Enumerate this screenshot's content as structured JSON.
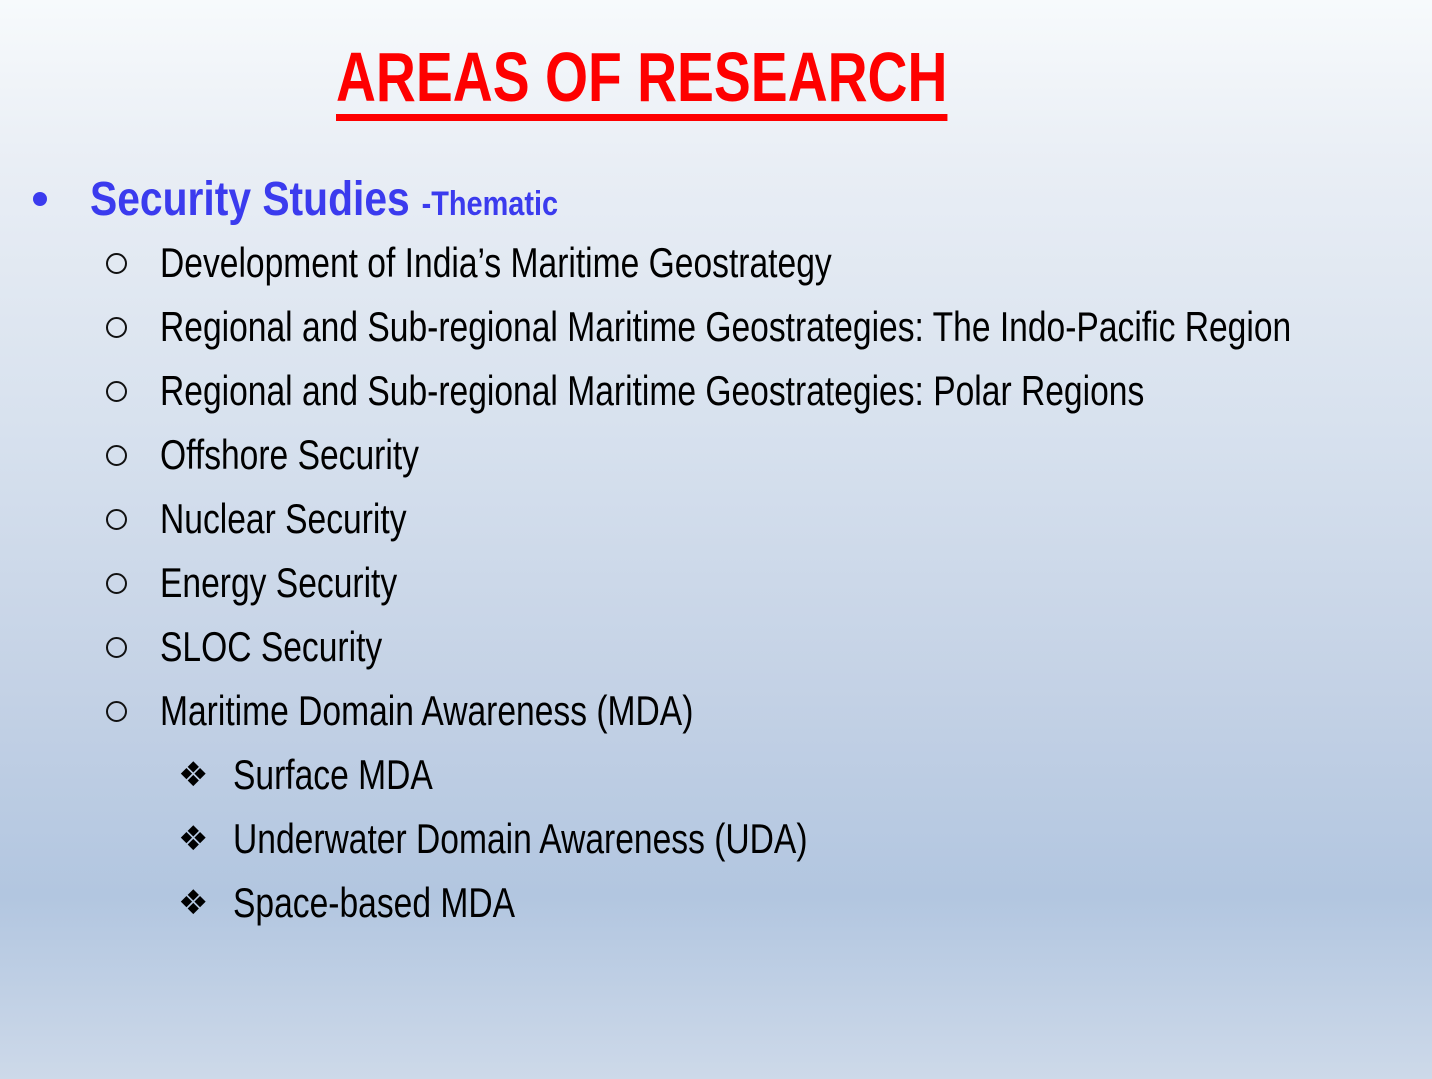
{
  "title": {
    "text": "AREAS OF RESEARCH",
    "color": "#fe0000"
  },
  "heading": {
    "text": "Security Studies",
    "suffix": "-Thematic",
    "color": "#3b3bee"
  },
  "glyphs": {
    "diamond_bullet": "❖"
  },
  "icons": {
    "level1_bullet": "filled-circle-bullet",
    "level2_bullet": "open-circle-bullet",
    "level3_bullet": "four-diamond-bullet"
  },
  "list": {
    "items": [
      {
        "level": 2,
        "text": "Development of India’s Maritime Geostrategy"
      },
      {
        "level": 2,
        "text": "Regional and Sub-regional Maritime Geostrategies: The Indo-Pacific Region"
      },
      {
        "level": 2,
        "text": "Regional and Sub-regional Maritime Geostrategies: Polar Regions"
      },
      {
        "level": 2,
        "text": "Offshore Security"
      },
      {
        "level": 2,
        "text": "Nuclear Security"
      },
      {
        "level": 2,
        "text": "Energy Security"
      },
      {
        "level": 2,
        "text": "SLOC Security"
      },
      {
        "level": 2,
        "text": "Maritime Domain Awareness (MDA)"
      },
      {
        "level": 3,
        "text": "Surface MDA"
      },
      {
        "level": 3,
        "text": "Underwater Domain Awareness (UDA)"
      },
      {
        "level": 3,
        "text": "Space-based MDA"
      }
    ]
  },
  "colors": {
    "background_top": "#f7fafc",
    "background_darkest": "#b2c6e0",
    "background_bottom": "#cdd9e9",
    "title_red": "#fe0000",
    "heading_blue": "#3b3bee",
    "body_text": "#000000"
  }
}
